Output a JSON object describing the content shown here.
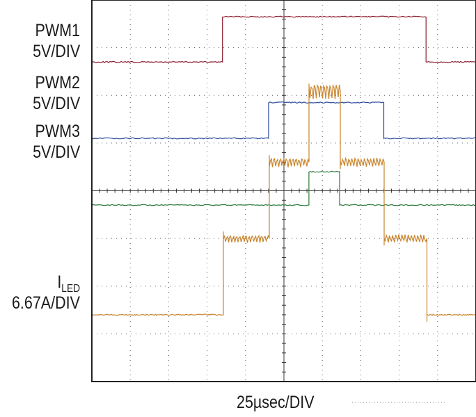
{
  "labels": {
    "pwm1_name": "PWM1",
    "pwm1_scale": "5V/DIV",
    "pwm2_name": "PWM2",
    "pwm2_scale": "5V/DIV",
    "pwm3_name": "PWM3",
    "pwm3_scale": "5V/DIV",
    "iled_main": "I",
    "iled_sub": "LED",
    "iled_scale": "6.67A/DIV",
    "timebase": "25µsec/DIV"
  },
  "colors": {
    "pwm1": "#8b1a2b",
    "pwm2": "#2a4a9a",
    "pwm3": "#2e7a3c",
    "iled": "#c8842c",
    "grid": "#555555",
    "frame": "#222222"
  },
  "chart_data": {
    "type": "line",
    "title": "",
    "xlabel": "25µsec/DIV",
    "x_divisions": 10,
    "y_divisions": 8,
    "x_units": "divisions",
    "grid": true,
    "series": [
      {
        "name": "PWM1",
        "scale": "5V/DIV",
        "low_div": 6.7,
        "high_div": 7.65,
        "on_div": 3.4,
        "off_div": 8.7
      },
      {
        "name": "PWM2",
        "scale": "5V/DIV",
        "low_div": 5.1,
        "high_div": 5.85,
        "on_div": 4.6,
        "off_div": 7.6
      },
      {
        "name": "PWM3",
        "scale": "5V/DIV",
        "low_div": 3.7,
        "high_div": 4.4,
        "on_div": 5.65,
        "off_div": 6.45
      },
      {
        "name": "ILED",
        "scale": "6.67A/DIV",
        "levels_div": [
          1.4,
          3.0,
          4.6,
          6.1
        ],
        "step_times_div": [
          3.4,
          4.6,
          5.65,
          6.45,
          7.6,
          8.7
        ]
      }
    ]
  }
}
